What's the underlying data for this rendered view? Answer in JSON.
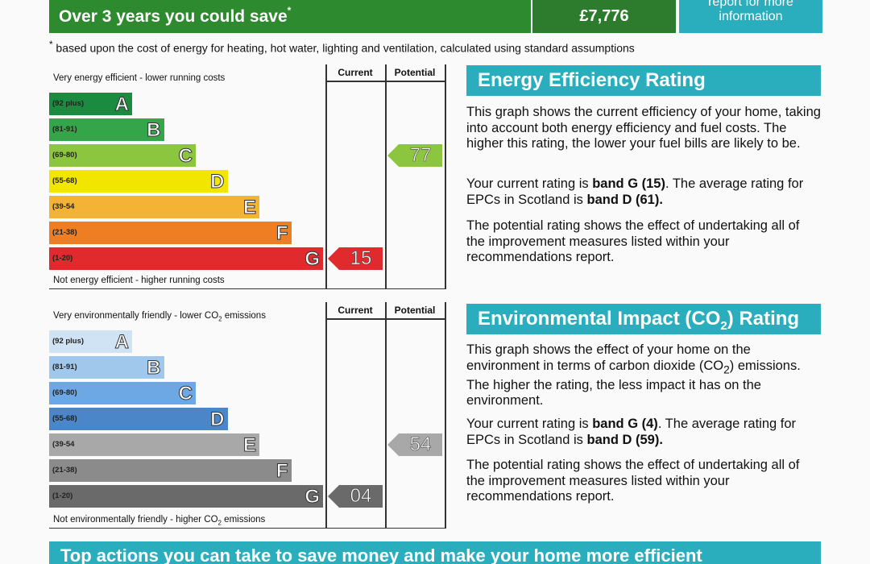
{
  "savings": {
    "headline": "Over 3 years you could save",
    "marker": "*",
    "amount": "£7,776",
    "report_line1": "report for more",
    "report_line2": "information",
    "footnote_marker": "*",
    "footnote": " based upon the cost of energy for heating, hot water, lighting and ventilation, calculated using standard assumptions"
  },
  "energy_graph": {
    "top_label": "Very energy efficient - lower running costs",
    "bottom_label": "Not energy efficient - higher running costs",
    "col_current": "Current",
    "col_potential": "Potential",
    "bands": [
      {
        "range": "(92 plus)",
        "letter": "A",
        "color": "#1a8b3f"
      },
      {
        "range": "(81-91)",
        "letter": "B",
        "color": "#34a548"
      },
      {
        "range": "(69-80)",
        "letter": "C",
        "color": "#8cc63f"
      },
      {
        "range": "(55-68)",
        "letter": "D",
        "color": "#f2e600"
      },
      {
        "range": "(39-54",
        "letter": "E",
        "color": "#f5b335"
      },
      {
        "range": "(21-38)",
        "letter": "F",
        "color": "#ef7d22"
      },
      {
        "range": "(1-20)",
        "letter": "G",
        "color": "#e02a2e"
      }
    ],
    "current": {
      "value": "15",
      "band": "G",
      "color": "#e02a2e"
    },
    "potential": {
      "value": "77",
      "band": "C",
      "color": "#8cc63f"
    }
  },
  "energy_panel": {
    "title": "Energy Efficiency Rating",
    "p1": "This graph shows the current efficiency of your home, taking into account both energy efficiency and fuel costs. The higher this rating, the lower your fuel bills are likely to be.",
    "p2_a": "Your current rating is ",
    "p2_b": "band G (15)",
    "p2_c": ". The average rating for EPCs in Scotland is ",
    "p2_d": "band D (61).",
    "p3": "The potential rating shows the effect of undertaking all of the improvement measures listed within your recommendations report."
  },
  "env_graph": {
    "top_label_a": "Very environmentally friendly - lower CO",
    "top_label_sub": "2",
    "top_label_b": " emissions",
    "bottom_label_a": "Not environmentally friendly - higher CO",
    "bottom_label_sub": "2",
    "bottom_label_b": " emissions",
    "col_current": "Current",
    "col_potential": "Potential",
    "bands": [
      {
        "range": "(92 plus)",
        "letter": "A",
        "color": "#cfe3f5"
      },
      {
        "range": "(81-91)",
        "letter": "B",
        "color": "#9fc8ec"
      },
      {
        "range": "(69-80)",
        "letter": "C",
        "color": "#6ea8e4"
      },
      {
        "range": "(55-68)",
        "letter": "D",
        "color": "#4a86c8"
      },
      {
        "range": "(39-54",
        "letter": "E",
        "color": "#a8a8a8"
      },
      {
        "range": "(21-38)",
        "letter": "F",
        "color": "#8b8b8b"
      },
      {
        "range": "(1-20)",
        "letter": "G",
        "color": "#6a6a6a"
      }
    ],
    "current": {
      "value": "04",
      "band": "G",
      "color": "#6a6a6a"
    },
    "potential": {
      "value": "54",
      "band": "E",
      "color": "#a8a8a8"
    }
  },
  "env_panel": {
    "title_a": "Environmental Impact (CO",
    "title_sub": "2",
    "title_b": ") Rating",
    "p1_a": "This graph shows the effect of your home on the environment in terms of carbon dioxide (CO",
    "p1_sub": "2",
    "p1_b": ") emissions. The higher the rating, the less impact it has on the environment.",
    "p2_a": "Your current rating is ",
    "p2_b": "band G (4)",
    "p2_c": ". The average rating for EPCs in Scotland is ",
    "p2_d": "band D (59).",
    "p3": "The potential rating shows the effect of undertaking all of the improvement measures listed within your recommendations report."
  },
  "bottom_banner": "Top actions you can take to save money and make your home more efficient"
}
